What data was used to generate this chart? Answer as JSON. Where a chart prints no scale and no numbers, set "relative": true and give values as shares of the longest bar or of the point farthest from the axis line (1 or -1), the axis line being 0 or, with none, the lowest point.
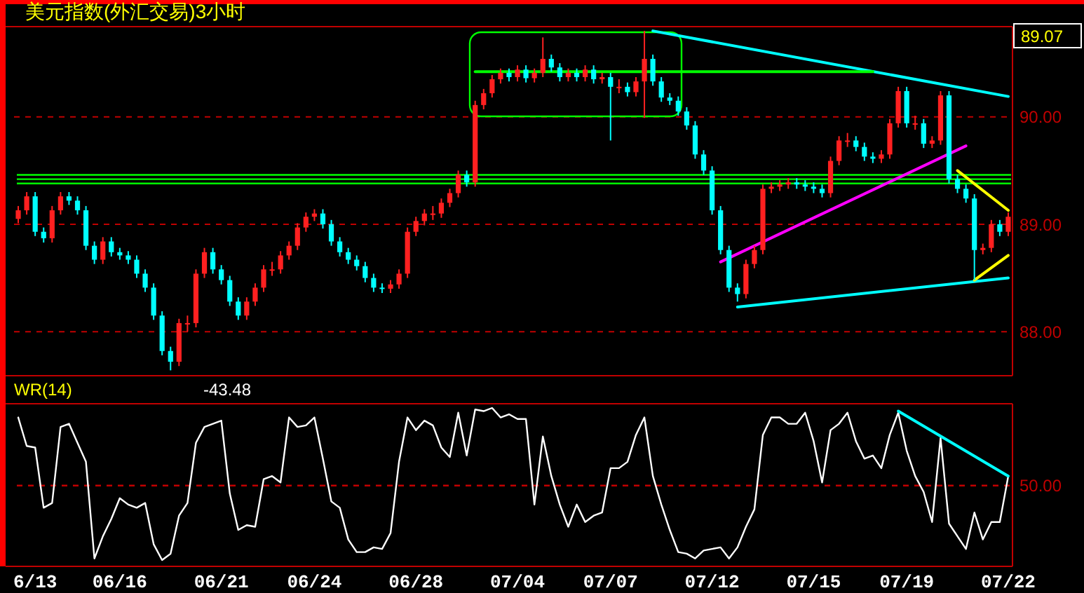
{
  "chart_data": [
    {
      "type": "candlestick",
      "title": "美元指数(外汇交易)3小时",
      "annotations": [
        "89.07"
      ],
      "categories": [
        null,
        null,
        null,
        null,
        null,
        null,
        null,
        null,
        null,
        null,
        null,
        null,
        null,
        null,
        null,
        null,
        null,
        null,
        null,
        null,
        null,
        null,
        null,
        null,
        null,
        null,
        null,
        null,
        null,
        null,
        null,
        null,
        null,
        null,
        null,
        null,
        null,
        null,
        null,
        null,
        null,
        null,
        null,
        null,
        null,
        null,
        null,
        null,
        null,
        null,
        null,
        null,
        null,
        null,
        null,
        null,
        null,
        null,
        null,
        null,
        null,
        null,
        null,
        null,
        null,
        null,
        null,
        null,
        null,
        null,
        null,
        null,
        null,
        null,
        null,
        null,
        null,
        null,
        null,
        null,
        null,
        null,
        null,
        null,
        null,
        null,
        null,
        null,
        null,
        null,
        null,
        null,
        null,
        null,
        null,
        null,
        null,
        null,
        null,
        null,
        null,
        null,
        null,
        null,
        null,
        null,
        null,
        null,
        null,
        null,
        null,
        null,
        null,
        null,
        null,
        null,
        null,
        null
      ],
      "ohlc": [
        [
          89.05,
          89.17,
          89.01,
          89.13
        ],
        [
          89.13,
          89.3,
          89.09,
          89.26
        ],
        [
          89.26,
          89.3,
          88.89,
          88.93
        ],
        [
          88.93,
          88.97,
          88.83,
          88.87
        ],
        [
          88.87,
          89.17,
          88.83,
          89.13
        ],
        [
          89.13,
          89.3,
          89.09,
          89.26
        ],
        [
          89.26,
          89.3,
          89.18,
          89.22
        ],
        [
          89.22,
          89.26,
          89.09,
          89.13
        ],
        [
          89.13,
          89.17,
          88.76,
          88.8
        ],
        [
          88.8,
          88.84,
          88.63,
          88.67
        ],
        [
          88.67,
          88.88,
          88.63,
          88.84
        ],
        [
          88.84,
          88.88,
          88.7,
          88.74
        ],
        [
          88.74,
          88.78,
          88.67,
          88.71
        ],
        [
          88.71,
          88.75,
          88.63,
          88.67
        ],
        [
          88.67,
          88.71,
          88.5,
          88.54
        ],
        [
          88.54,
          88.58,
          88.37,
          88.41
        ],
        [
          88.41,
          88.45,
          88.11,
          88.15
        ],
        [
          88.15,
          88.19,
          87.78,
          87.82
        ],
        [
          87.82,
          87.86,
          87.64,
          87.72
        ],
        [
          87.72,
          88.12,
          87.68,
          88.08
        ],
        [
          88.08,
          88.15,
          88.0,
          88.08
        ],
        [
          88.08,
          88.58,
          88.04,
          88.54
        ],
        [
          88.54,
          88.78,
          88.5,
          88.74
        ],
        [
          88.74,
          88.78,
          88.54,
          88.58
        ],
        [
          88.58,
          88.62,
          88.44,
          88.48
        ],
        [
          88.48,
          88.52,
          88.24,
          88.28
        ],
        [
          88.28,
          88.32,
          88.11,
          88.15
        ],
        [
          88.15,
          88.32,
          88.11,
          88.28
        ],
        [
          88.28,
          88.45,
          88.24,
          88.41
        ],
        [
          88.41,
          88.62,
          88.37,
          88.58
        ],
        [
          88.58,
          88.65,
          88.52,
          88.58
        ],
        [
          88.58,
          88.75,
          88.54,
          88.71
        ],
        [
          88.71,
          88.84,
          88.67,
          88.8
        ],
        [
          88.8,
          89.01,
          88.76,
          88.97
        ],
        [
          88.97,
          89.11,
          88.93,
          89.07
        ],
        [
          89.07,
          89.14,
          89.03,
          89.1
        ],
        [
          89.1,
          89.14,
          88.96,
          89.0
        ],
        [
          89.0,
          89.04,
          88.8,
          88.84
        ],
        [
          88.84,
          88.88,
          88.7,
          88.74
        ],
        [
          88.74,
          88.78,
          88.63,
          88.67
        ],
        [
          88.67,
          88.71,
          88.57,
          88.61
        ],
        [
          88.61,
          88.65,
          88.46,
          88.5
        ],
        [
          88.5,
          88.54,
          88.37,
          88.41
        ],
        [
          88.41,
          88.45,
          88.36,
          88.4
        ],
        [
          88.4,
          88.48,
          88.36,
          88.44
        ],
        [
          88.44,
          88.58,
          88.4,
          88.54
        ],
        [
          88.54,
          88.97,
          88.5,
          88.93
        ],
        [
          88.93,
          89.07,
          88.89,
          89.03
        ],
        [
          89.03,
          89.14,
          88.99,
          89.1
        ],
        [
          89.1,
          89.17,
          89.04,
          89.1
        ],
        [
          89.1,
          89.24,
          89.06,
          89.2
        ],
        [
          89.2,
          89.33,
          89.16,
          89.29
        ],
        [
          89.29,
          89.5,
          89.25,
          89.46
        ],
        [
          89.46,
          89.5,
          89.35,
          89.39
        ],
        [
          89.39,
          90.15,
          89.35,
          90.11
        ],
        [
          90.11,
          90.26,
          90.07,
          90.22
        ],
        [
          90.22,
          90.39,
          90.18,
          90.35
        ],
        [
          90.35,
          90.45,
          90.31,
          90.41
        ],
        [
          90.41,
          90.45,
          90.33,
          90.37
        ],
        [
          90.37,
          90.48,
          90.33,
          90.44
        ],
        [
          90.44,
          90.48,
          90.32,
          90.36
        ],
        [
          90.36,
          90.45,
          90.32,
          90.41
        ],
        [
          90.41,
          90.74,
          90.37,
          90.54
        ],
        [
          90.54,
          90.58,
          90.42,
          90.46
        ],
        [
          90.46,
          90.5,
          90.33,
          90.37
        ],
        [
          90.37,
          90.45,
          90.33,
          90.41
        ],
        [
          90.41,
          90.45,
          90.33,
          90.37
        ],
        [
          90.37,
          90.48,
          90.33,
          90.44
        ],
        [
          90.44,
          90.48,
          90.31,
          90.35
        ],
        [
          90.35,
          90.41,
          90.31,
          90.37
        ],
        [
          90.37,
          90.41,
          89.78,
          90.28
        ],
        [
          90.28,
          90.35,
          90.22,
          90.28
        ],
        [
          90.28,
          90.32,
          90.19,
          90.23
        ],
        [
          90.23,
          90.37,
          90.19,
          90.33
        ],
        [
          90.33,
          90.8,
          89.99,
          90.54
        ],
        [
          90.54,
          90.58,
          90.29,
          90.33
        ],
        [
          90.33,
          90.37,
          90.14,
          90.18
        ],
        [
          90.18,
          90.22,
          90.11,
          90.15
        ],
        [
          90.15,
          90.19,
          90.01,
          90.05
        ],
        [
          90.05,
          90.09,
          89.88,
          89.92
        ],
        [
          89.92,
          89.96,
          89.61,
          89.65
        ],
        [
          89.65,
          89.69,
          89.46,
          89.5
        ],
        [
          89.5,
          89.54,
          89.09,
          89.13
        ],
        [
          89.13,
          89.17,
          88.72,
          88.76
        ],
        [
          88.76,
          88.8,
          88.37,
          88.41
        ],
        [
          88.41,
          88.45,
          88.28,
          88.35
        ],
        [
          88.35,
          88.67,
          88.31,
          88.63
        ],
        [
          88.63,
          88.8,
          88.59,
          88.76
        ],
        [
          88.76,
          89.37,
          88.72,
          89.33
        ],
        [
          89.33,
          89.39,
          89.29,
          89.35
        ],
        [
          89.35,
          89.41,
          89.31,
          89.37
        ],
        [
          89.37,
          89.43,
          89.33,
          89.39
        ],
        [
          89.39,
          89.43,
          89.33,
          89.37
        ],
        [
          89.37,
          89.41,
          89.31,
          89.35
        ],
        [
          89.35,
          89.39,
          89.29,
          89.33
        ],
        [
          89.33,
          89.37,
          89.25,
          89.29
        ],
        [
          89.29,
          89.63,
          89.25,
          89.59
        ],
        [
          89.59,
          89.82,
          89.55,
          89.78
        ],
        [
          89.78,
          89.85,
          89.72,
          89.78
        ],
        [
          89.78,
          89.82,
          89.68,
          89.72
        ],
        [
          89.72,
          89.76,
          89.59,
          89.63
        ],
        [
          89.63,
          89.67,
          89.57,
          89.61
        ],
        [
          89.61,
          89.69,
          89.57,
          89.65
        ],
        [
          89.65,
          89.98,
          89.61,
          89.94
        ],
        [
          89.94,
          90.28,
          89.9,
          90.24
        ],
        [
          90.24,
          90.28,
          89.9,
          89.94
        ],
        [
          89.94,
          90.01,
          89.88,
          89.94
        ],
        [
          89.94,
          89.98,
          89.71,
          89.75
        ],
        [
          89.75,
          89.82,
          89.71,
          89.78
        ],
        [
          89.78,
          90.24,
          89.74,
          90.2
        ],
        [
          90.2,
          90.24,
          89.38,
          89.42
        ],
        [
          89.42,
          89.46,
          89.29,
          89.33
        ],
        [
          89.33,
          89.37,
          89.2,
          89.24
        ],
        [
          89.24,
          89.28,
          88.48,
          88.76
        ],
        [
          88.76,
          88.82,
          88.72,
          88.78
        ],
        [
          88.78,
          89.04,
          88.74,
          89.0
        ],
        [
          89.0,
          89.04,
          88.89,
          88.93
        ],
        [
          88.93,
          89.11,
          88.89,
          89.07
        ]
      ],
      "ylim": [
        87.59,
        90.84
      ],
      "yticks": [
        {
          "value": 88,
          "label": "88.00"
        },
        {
          "value": 89,
          "label": "89.00"
        },
        {
          "value": 90,
          "label": "90.00"
        }
      ],
      "grid": "y",
      "ref_lines": [
        {
          "axis": "y",
          "value": 89.38,
          "color": "#00ff00",
          "line_style": "solid"
        },
        {
          "axis": "y",
          "value": 89.42,
          "color": "#00ff00",
          "line_style": "solid"
        },
        {
          "axis": "y",
          "value": 89.46,
          "color": "#00ff00",
          "line_style": "solid"
        }
      ],
      "series": [
        {
          "type": "line",
          "color": "#00ffff",
          "values": [
            null,
            null,
            null,
            null,
            null,
            null,
            null,
            null,
            null,
            null,
            null,
            null,
            null,
            null,
            null,
            null,
            null,
            null,
            null,
            null,
            null,
            null,
            null,
            null,
            null,
            null,
            null,
            null,
            null,
            null,
            null,
            null,
            null,
            null,
            null,
            null,
            null,
            null,
            null,
            null,
            null,
            null,
            null,
            null,
            null,
            null,
            null,
            null,
            null,
            null,
            null,
            null,
            null,
            null,
            null,
            null,
            null,
            null,
            null,
            null,
            null,
            null,
            null,
            null,
            null,
            null,
            null,
            null,
            null,
            null,
            null,
            null,
            null,
            null,
            null,
            90.8,
            null,
            null,
            null,
            null,
            null,
            null,
            null,
            null,
            null,
            null,
            null,
            null,
            null,
            null,
            null,
            null,
            null,
            null,
            null,
            null,
            null,
            null,
            null,
            null,
            null,
            null,
            null,
            null,
            null,
            null,
            null,
            null,
            null,
            null,
            null,
            null,
            null,
            null,
            null,
            null,
            null,
            90.19
          ]
        },
        {
          "type": "line",
          "color": "#00ffff",
          "values": [
            null,
            null,
            null,
            null,
            null,
            null,
            null,
            null,
            null,
            null,
            null,
            null,
            null,
            null,
            null,
            null,
            null,
            null,
            null,
            null,
            null,
            null,
            null,
            null,
            null,
            null,
            null,
            null,
            null,
            null,
            null,
            null,
            null,
            null,
            null,
            null,
            null,
            null,
            null,
            null,
            null,
            null,
            null,
            null,
            null,
            null,
            null,
            null,
            null,
            null,
            null,
            null,
            null,
            null,
            null,
            null,
            null,
            null,
            null,
            null,
            null,
            null,
            null,
            null,
            null,
            null,
            null,
            null,
            null,
            null,
            null,
            null,
            null,
            null,
            null,
            null,
            null,
            null,
            null,
            null,
            null,
            null,
            null,
            null,
            null,
            88.23,
            null,
            null,
            null,
            null,
            null,
            null,
            null,
            null,
            null,
            null,
            null,
            null,
            null,
            null,
            null,
            null,
            null,
            null,
            null,
            null,
            null,
            null,
            null,
            null,
            null,
            null,
            null,
            null,
            null,
            null,
            null,
            88.5
          ]
        },
        {
          "type": "line",
          "color": "#ff00ff",
          "values": [
            null,
            null,
            null,
            null,
            null,
            null,
            null,
            null,
            null,
            null,
            null,
            null,
            null,
            null,
            null,
            null,
            null,
            null,
            null,
            null,
            null,
            null,
            null,
            null,
            null,
            null,
            null,
            null,
            null,
            null,
            null,
            null,
            null,
            null,
            null,
            null,
            null,
            null,
            null,
            null,
            null,
            null,
            null,
            null,
            null,
            null,
            null,
            null,
            null,
            null,
            null,
            null,
            null,
            null,
            null,
            null,
            null,
            null,
            null,
            null,
            null,
            null,
            null,
            null,
            null,
            null,
            null,
            null,
            null,
            null,
            null,
            null,
            null,
            null,
            null,
            null,
            null,
            null,
            null,
            null,
            null,
            null,
            null,
            88.65,
            null,
            null,
            null,
            null,
            null,
            null,
            null,
            null,
            null,
            null,
            null,
            null,
            null,
            null,
            null,
            null,
            null,
            null,
            null,
            null,
            null,
            null,
            null,
            null,
            null,
            null,
            null,
            null,
            89.73,
            null,
            null,
            null,
            null,
            null
          ]
        },
        {
          "type": "line",
          "color": "#ffff00",
          "values": [
            null,
            null,
            null,
            null,
            null,
            null,
            null,
            null,
            null,
            null,
            null,
            null,
            null,
            null,
            null,
            null,
            null,
            null,
            null,
            null,
            null,
            null,
            null,
            null,
            null,
            null,
            null,
            null,
            null,
            null,
            null,
            null,
            null,
            null,
            null,
            null,
            null,
            null,
            null,
            null,
            null,
            null,
            null,
            null,
            null,
            null,
            null,
            null,
            null,
            null,
            null,
            null,
            null,
            null,
            null,
            null,
            null,
            null,
            null,
            null,
            null,
            null,
            null,
            null,
            null,
            null,
            null,
            null,
            null,
            null,
            null,
            null,
            null,
            null,
            null,
            null,
            null,
            null,
            null,
            null,
            null,
            null,
            null,
            null,
            null,
            null,
            null,
            null,
            null,
            null,
            null,
            null,
            null,
            null,
            null,
            null,
            null,
            null,
            null,
            null,
            null,
            null,
            null,
            null,
            null,
            null,
            null,
            null,
            null,
            null,
            null,
            89.5,
            null,
            null,
            null,
            null,
            null,
            89.13
          ]
        },
        {
          "type": "line",
          "color": "#ffff00",
          "values": [
            null,
            null,
            null,
            null,
            null,
            null,
            null,
            null,
            null,
            null,
            null,
            null,
            null,
            null,
            null,
            null,
            null,
            null,
            null,
            null,
            null,
            null,
            null,
            null,
            null,
            null,
            null,
            null,
            null,
            null,
            null,
            null,
            null,
            null,
            null,
            null,
            null,
            null,
            null,
            null,
            null,
            null,
            null,
            null,
            null,
            null,
            null,
            null,
            null,
            null,
            null,
            null,
            null,
            null,
            null,
            null,
            null,
            null,
            null,
            null,
            null,
            null,
            null,
            null,
            null,
            null,
            null,
            null,
            null,
            null,
            null,
            null,
            null,
            null,
            null,
            null,
            null,
            null,
            null,
            null,
            null,
            null,
            null,
            null,
            null,
            null,
            null,
            null,
            null,
            null,
            null,
            null,
            null,
            null,
            null,
            null,
            null,
            null,
            null,
            null,
            null,
            null,
            null,
            null,
            null,
            null,
            null,
            null,
            null,
            null,
            null,
            null,
            null,
            88.48,
            null,
            null,
            null,
            88.71
          ]
        },
        {
          "type": "line",
          "color": "#00ff00",
          "values": [
            null,
            null,
            null,
            null,
            null,
            null,
            null,
            null,
            null,
            null,
            null,
            null,
            null,
            null,
            null,
            null,
            null,
            null,
            null,
            null,
            null,
            null,
            null,
            null,
            null,
            null,
            null,
            null,
            null,
            null,
            null,
            null,
            null,
            null,
            null,
            null,
            null,
            null,
            null,
            null,
            null,
            null,
            null,
            null,
            null,
            null,
            null,
            null,
            null,
            null,
            null,
            null,
            null,
            null,
            90.42,
            null,
            null,
            null,
            null,
            null,
            null,
            null,
            null,
            null,
            null,
            null,
            null,
            null,
            null,
            null,
            null,
            null,
            null,
            null,
            null,
            null,
            null,
            null,
            null,
            null,
            null,
            null,
            null,
            null,
            null,
            null,
            null,
            null,
            null,
            null,
            null,
            null,
            null,
            null,
            null,
            null,
            null,
            null,
            null,
            null,
            null,
            90.42,
            null,
            null,
            null,
            null,
            null,
            null,
            null,
            null,
            null,
            null,
            null,
            null,
            null,
            null,
            null,
            null
          ]
        }
      ]
    },
    {
      "type": "line",
      "title": "WR(14)",
      "annotations": [
        "-43.48",
        "50.00"
      ],
      "relative": true,
      "categories": [
        null,
        null,
        "6/13",
        null,
        null,
        null,
        null,
        null,
        null,
        null,
        null,
        null,
        "06/16",
        null,
        null,
        null,
        null,
        null,
        null,
        null,
        null,
        null,
        null,
        null,
        "06/21",
        null,
        null,
        null,
        null,
        null,
        null,
        null,
        null,
        null,
        null,
        "06/24",
        null,
        null,
        null,
        null,
        null,
        null,
        null,
        null,
        null,
        null,
        null,
        "06/28",
        null,
        null,
        null,
        null,
        null,
        null,
        null,
        null,
        null,
        null,
        null,
        "07/04",
        null,
        null,
        null,
        null,
        null,
        null,
        null,
        null,
        null,
        null,
        "07/07",
        null,
        null,
        null,
        null,
        null,
        null,
        null,
        null,
        null,
        null,
        null,
        "07/12",
        null,
        null,
        null,
        null,
        null,
        null,
        null,
        null,
        null,
        null,
        null,
        "07/15",
        null,
        null,
        null,
        null,
        null,
        null,
        null,
        null,
        null,
        null,
        "07/19",
        null,
        null,
        null,
        null,
        null,
        null,
        null,
        null,
        null,
        null,
        null,
        "07/22"
      ],
      "ref_lines": [
        {
          "axis": "y",
          "value": 0.51,
          "color": "#c00000",
          "line_style": "dashed"
        }
      ],
      "series": [
        {
          "color": "#ffffff",
          "values": [
            0.94,
            0.76,
            0.75,
            0.37,
            0.4,
            0.88,
            0.9,
            0.78,
            0.66,
            0.05,
            0.19,
            0.3,
            0.43,
            0.39,
            0.37,
            0.4,
            0.14,
            0.04,
            0.08,
            0.32,
            0.4,
            0.78,
            0.88,
            0.9,
            0.92,
            0.46,
            0.23,
            0.26,
            0.25,
            0.55,
            0.57,
            0.53,
            0.94,
            0.88,
            0.89,
            0.94,
            0.68,
            0.41,
            0.37,
            0.17,
            0.09,
            0.09,
            0.12,
            0.11,
            0.21,
            0.66,
            0.94,
            0.86,
            0.92,
            0.89,
            0.75,
            0.69,
            0.97,
            0.7,
            0.99,
            0.98,
            1,
            0.94,
            0.96,
            0.93,
            0.93,
            0.39,
            0.82,
            0.57,
            0.39,
            0.25,
            0.39,
            0.28,
            0.32,
            0.34,
            0.62,
            0.62,
            0.66,
            0.83,
            0.94,
            0.57,
            0.39,
            0.23,
            0.09,
            0.08,
            0.05,
            0.1,
            0.11,
            0.12,
            0.05,
            0.12,
            0.25,
            0.36,
            0.83,
            0.94,
            0.94,
            0.9,
            0.9,
            0.97,
            0.79,
            0.53,
            0.86,
            0.9,
            0.97,
            0.79,
            0.68,
            0.7,
            0.62,
            0.83,
            0.97,
            0.73,
            0.57,
            0.47,
            0.28,
            0.81,
            0.27,
            0.19,
            0.11,
            0.34,
            0.17,
            0.28,
            0.28,
            0.57
          ]
        },
        {
          "type": "line",
          "color": "#00ffff",
          "values": [
            null,
            null,
            null,
            null,
            null,
            null,
            null,
            null,
            null,
            null,
            null,
            null,
            null,
            null,
            null,
            null,
            null,
            null,
            null,
            null,
            null,
            null,
            null,
            null,
            null,
            null,
            null,
            null,
            null,
            null,
            null,
            null,
            null,
            null,
            null,
            null,
            null,
            null,
            null,
            null,
            null,
            null,
            null,
            null,
            null,
            null,
            null,
            null,
            null,
            null,
            null,
            null,
            null,
            null,
            null,
            null,
            null,
            null,
            null,
            null,
            null,
            null,
            null,
            null,
            null,
            null,
            null,
            null,
            null,
            null,
            null,
            null,
            null,
            null,
            null,
            null,
            null,
            null,
            null,
            null,
            null,
            null,
            null,
            null,
            null,
            null,
            null,
            null,
            null,
            null,
            null,
            null,
            null,
            null,
            null,
            null,
            null,
            null,
            null,
            null,
            null,
            null,
            null,
            null,
            0.98,
            null,
            null,
            null,
            null,
            null,
            null,
            null,
            null,
            null,
            null,
            null,
            null,
            0.57
          ]
        }
      ]
    }
  ]
}
